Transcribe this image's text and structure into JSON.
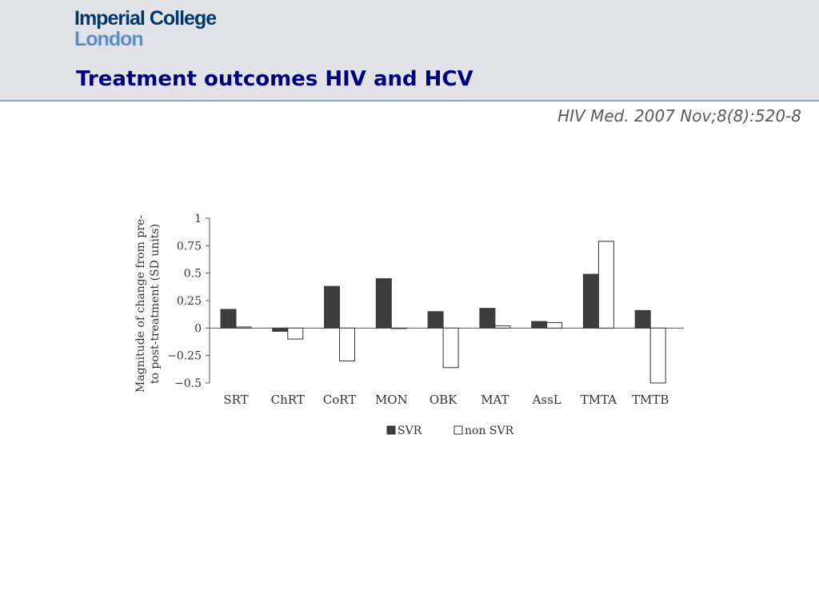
{
  "header": {
    "logo_line1": "Imperial College",
    "logo_line2": "London",
    "title": "Treatment outcomes HIV and HCV"
  },
  "citation": "HIV Med. 2007 Nov;8(8):520-8",
  "colors": {
    "title": "#00007f",
    "logo_dark": "#00376b",
    "logo_light": "#5a8fc4",
    "header_bg": "#e1e3e8",
    "svr_fill": "#3d3d3d",
    "non_svr_fill": "#ffffff"
  },
  "chart_data": {
    "type": "bar",
    "categories": [
      "SRT",
      "ChRT",
      "CoRT",
      "MON",
      "OBK",
      "MAT",
      "AssL",
      "TMTA",
      "TMTB"
    ],
    "series": [
      {
        "name": "SVR",
        "values": [
          0.17,
          -0.03,
          0.38,
          0.45,
          0.15,
          0.18,
          0.06,
          0.49,
          0.16
        ]
      },
      {
        "name": "non SVR",
        "values": [
          0.01,
          -0.1,
          -0.3,
          0.0,
          -0.36,
          0.02,
          0.05,
          0.79,
          -0.5
        ]
      }
    ],
    "ylabel_line1": "Magnitude of change from pre-",
    "ylabel_line2": "to post-treatment (SD units)",
    "yticks": [
      "1",
      "0.75",
      "0.5",
      "0.25",
      "0",
      "−0.25",
      "−0.5"
    ],
    "ytick_values": [
      1,
      0.75,
      0.5,
      0.25,
      0,
      -0.25,
      -0.5
    ],
    "ylim": [
      -0.5,
      1
    ],
    "legend_position": "bottom",
    "grid": false
  }
}
